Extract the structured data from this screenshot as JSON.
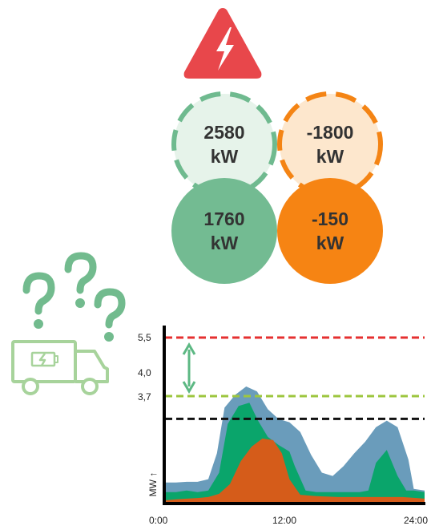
{
  "circles": {
    "top_left": {
      "value": "2580",
      "unit": "kW",
      "fill": "#e6f3ea",
      "stroke": "#6fba8f"
    },
    "top_right": {
      "value": "-1800",
      "unit": "kW",
      "fill": "#fde7cd",
      "stroke": "#f48414"
    },
    "bottom_left": {
      "value": "1760",
      "unit": "kW",
      "fill": "#73bb92"
    },
    "bottom_right": {
      "value": "-150",
      "unit": "kW",
      "fill": "#f68413"
    }
  },
  "icons": {
    "warning": "high-voltage-warning-icon",
    "questions": "question-marks-icon",
    "truck": "battery-truck-icon"
  },
  "colors": {
    "question_marks": "#72bb8e",
    "truck": "#a7d39b",
    "warning": "#e8474b",
    "limit_red": "#e53030",
    "limit_green": "#9dc63f",
    "limit_black": "#111111",
    "area_blue": "#6a9cbb",
    "area_green": "#0aa56b",
    "area_orange": "#d55c1a"
  },
  "chart_data": {
    "type": "area",
    "x_range": [
      "0:00",
      "24:00"
    ],
    "x_ticks": [
      "0:00",
      "12:00",
      "24:00"
    ],
    "y_ticks": [
      "5,5",
      "4,0",
      "3,7"
    ],
    "ylabel": "MW ↑",
    "reference_lines": [
      {
        "value": 5.5,
        "color": "red",
        "style": "dashed"
      },
      {
        "value": 3.7,
        "color": "green",
        "style": "dashed"
      },
      {
        "value": 3.0,
        "color": "black",
        "style": "dashed"
      }
    ],
    "annotation": "double-headed arrow between 5,5 and 3,7",
    "series": [
      {
        "color": "blue",
        "x": [
          0,
          1,
          2,
          3,
          4,
          4.8,
          5.5,
          6.5,
          7.5,
          8.5,
          9.5,
          10.5,
          11.5,
          12.5,
          13.5,
          14.5,
          15.5,
          16.5,
          17.5,
          18.5,
          19.5,
          20.5,
          21.5,
          22.5,
          23,
          24
        ],
        "y": [
          0.6,
          0.6,
          0.62,
          0.62,
          0.7,
          1.5,
          2.9,
          3.3,
          3.55,
          3.4,
          2.85,
          2.55,
          2.45,
          2.15,
          1.45,
          0.9,
          0.8,
          1.1,
          1.5,
          1.85,
          2.3,
          2.5,
          2.3,
          1.3,
          0.4,
          0.35
        ]
      },
      {
        "color": "green",
        "x": [
          0,
          1,
          2,
          3,
          4,
          5,
          5.8,
          6.8,
          7.8,
          8.6,
          9.5,
          10.5,
          11.5,
          12,
          13,
          14,
          16,
          18,
          18.8,
          19.5,
          20.5,
          21.5,
          22.3,
          23,
          24
        ],
        "y": [
          0.3,
          0.3,
          0.35,
          0.3,
          0.35,
          0.9,
          2.4,
          2.95,
          3.05,
          2.5,
          2.0,
          1.75,
          1.55,
          1.1,
          0.35,
          0.3,
          0.3,
          0.3,
          0.35,
          1.2,
          1.6,
          0.8,
          0.35,
          0.35,
          0.3
        ]
      },
      {
        "color": "orange",
        "x": [
          0,
          1,
          2,
          3,
          4,
          5,
          6,
          7,
          8,
          9,
          10,
          10.8,
          11.5,
          12.5,
          14,
          16,
          18,
          20,
          22,
          24
        ],
        "y": [
          0.05,
          0.08,
          0.1,
          0.12,
          0.15,
          0.25,
          0.55,
          1.25,
          1.7,
          1.95,
          1.9,
          1.5,
          0.7,
          0.22,
          0.18,
          0.15,
          0.15,
          0.15,
          0.15,
          0.1
        ]
      }
    ]
  }
}
